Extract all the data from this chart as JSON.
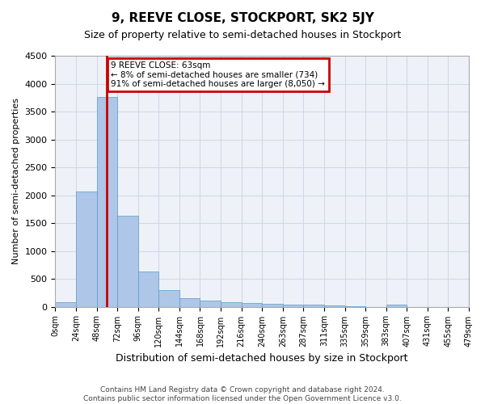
{
  "title": "9, REEVE CLOSE, STOCKPORT, SK2 5JY",
  "subtitle": "Size of property relative to semi-detached houses in Stockport",
  "xlabel": "Distribution of semi-detached houses by size in Stockport",
  "ylabel": "Number of semi-detached properties",
  "bin_labels": [
    "0sqm",
    "24sqm",
    "48sqm",
    "72sqm",
    "96sqm",
    "120sqm",
    "144sqm",
    "168sqm",
    "192sqm",
    "216sqm",
    "240sqm",
    "263sqm",
    "287sqm",
    "311sqm",
    "335sqm",
    "359sqm",
    "383sqm",
    "407sqm",
    "431sqm",
    "455sqm",
    "479sqm"
  ],
  "bar_values": [
    85,
    2060,
    3760,
    1630,
    630,
    305,
    155,
    105,
    85,
    70,
    55,
    40,
    30,
    20,
    5,
    0,
    40,
    0,
    0,
    0
  ],
  "bar_color": "#aec6e8",
  "bar_edge_color": "#5a9bc9",
  "property_line_x": 2.5,
  "property_label": "9 REEVE CLOSE: 63sqm",
  "pct_smaller": "8% of semi-detached houses are smaller (734)",
  "pct_larger": "91% of semi-detached houses are larger (8,050) →",
  "box_color": "#cc0000",
  "ylim": [
    0,
    4500
  ],
  "yticks": [
    0,
    500,
    1000,
    1500,
    2000,
    2500,
    3000,
    3500,
    4000,
    4500
  ],
  "grid_color": "#d0d8e8",
  "bg_color": "#eef2f8",
  "property_line_color": "#cc0000",
  "footnote1": "Contains HM Land Registry data © Crown copyright and database right 2024.",
  "footnote2": "Contains public sector information licensed under the Open Government Licence v3.0."
}
